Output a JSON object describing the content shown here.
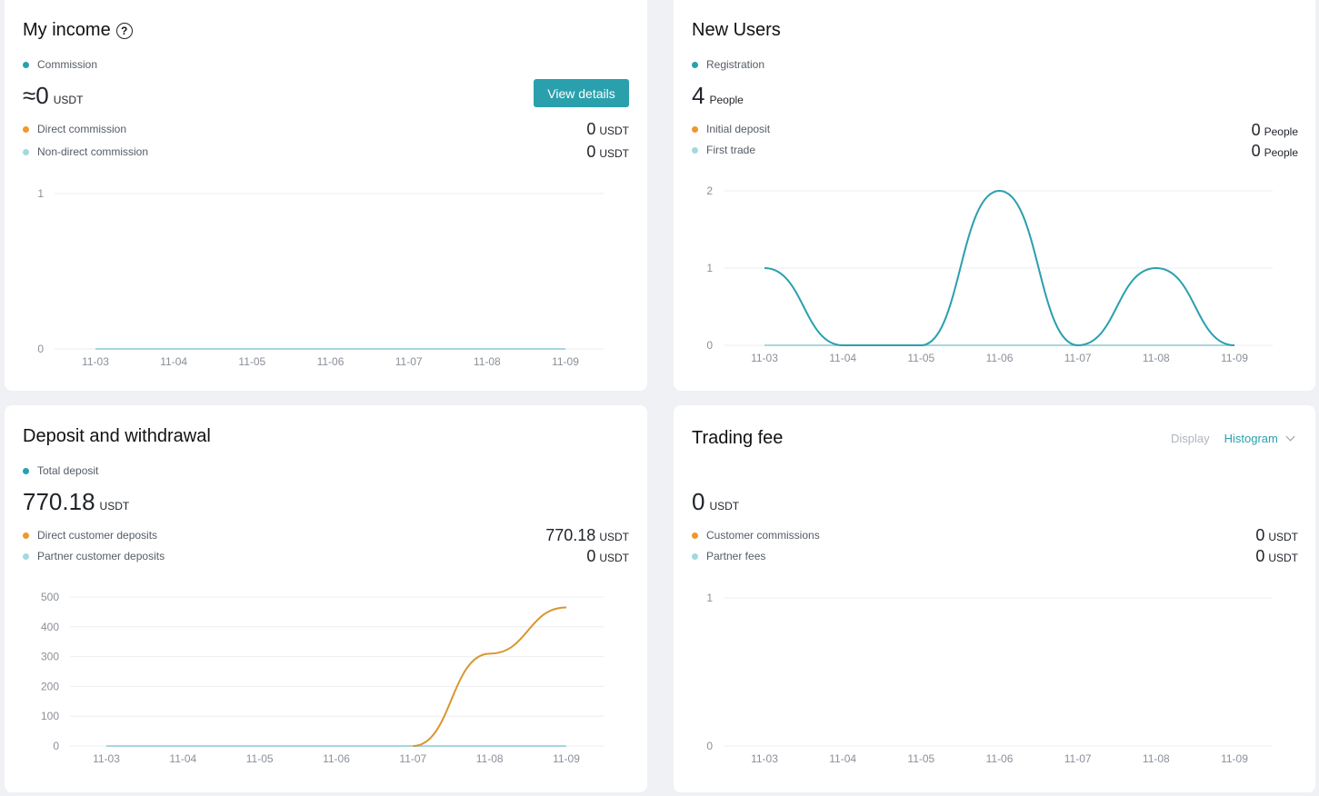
{
  "colors": {
    "teal": "#2aa0ad",
    "orange": "#f0982d",
    "light_blue": "#a6d7de",
    "deposit_line": "#d8962f"
  },
  "income": {
    "title": "My income",
    "help_icon": "question-circle-icon",
    "legend_main": "Commission",
    "approx": "≈",
    "total": "0",
    "unit": "USDT",
    "button": "View details",
    "legend_direct": "Direct commission",
    "legend_nondirect": "Non-direct commission",
    "direct_value": "0",
    "nondirect_value": "0"
  },
  "users": {
    "title": "New Users",
    "legend_main": "Registration",
    "total": "4",
    "unit": "People",
    "legend_initial": "Initial deposit",
    "legend_first_trade": "First trade",
    "initial_value": "0",
    "first_trade_value": "0"
  },
  "deposit": {
    "title": "Deposit and withdrawal",
    "legend_main": "Total deposit",
    "total": "770.18",
    "unit": "USDT",
    "legend_direct": "Direct customer deposits",
    "legend_partner": "Partner customer deposits",
    "direct_value": "770.18",
    "partner_value": "0"
  },
  "fee": {
    "title": "Trading fee",
    "display_label": "Display",
    "display_value": "Histogram",
    "total": "0",
    "unit": "USDT",
    "legend_customer": "Customer commissions",
    "legend_partner": "Partner fees",
    "customer_value": "0",
    "partner_value": "0"
  },
  "chart_data": [
    {
      "type": "line",
      "categories": [
        "11-03",
        "11-04",
        "11-05",
        "11-06",
        "11-07",
        "11-08",
        "11-09"
      ],
      "ylim": [
        0,
        1
      ],
      "yticks": [
        0,
        1
      ],
      "series": [
        {
          "name": "Direct commission",
          "values": [
            0,
            0,
            0,
            0,
            0,
            0,
            0
          ],
          "color": "#a6d7de"
        }
      ]
    },
    {
      "type": "line",
      "categories": [
        "11-03",
        "11-04",
        "11-05",
        "11-06",
        "11-07",
        "11-08",
        "11-09"
      ],
      "ylim": [
        0,
        2
      ],
      "yticks": [
        0,
        1,
        2
      ],
      "series": [
        {
          "name": "Registration",
          "values": [
            1,
            0,
            0,
            2,
            0,
            1,
            0
          ],
          "color": "#2aa0ad"
        },
        {
          "name": "First trade",
          "values": [
            0,
            0,
            0,
            0,
            0,
            0,
            0
          ],
          "color": "#a6d7de"
        }
      ]
    },
    {
      "type": "line",
      "categories": [
        "11-03",
        "11-04",
        "11-05",
        "11-06",
        "11-07",
        "11-08",
        "11-09"
      ],
      "ylim": [
        0,
        500
      ],
      "yticks": [
        0,
        100,
        200,
        300,
        400,
        500
      ],
      "series": [
        {
          "name": "Direct customer deposits",
          "values": [
            0,
            0,
            0,
            0,
            0,
            310,
            465
          ],
          "color": "#d8962f"
        },
        {
          "name": "Partner customer deposits",
          "values": [
            0,
            0,
            0,
            0,
            0,
            0,
            0
          ],
          "color": "#a6d7de"
        }
      ]
    },
    {
      "type": "bar",
      "categories": [
        "11-03",
        "11-04",
        "11-05",
        "11-06",
        "11-07",
        "11-08",
        "11-09"
      ],
      "ylim": [
        0,
        1
      ],
      "yticks": [
        0,
        1
      ],
      "series": [
        {
          "name": "Customer commissions",
          "values": [
            0,
            0,
            0,
            0,
            0,
            0,
            0
          ],
          "color": "#f0982d"
        },
        {
          "name": "Partner fees",
          "values": [
            0,
            0,
            0,
            0,
            0,
            0,
            0
          ],
          "color": "#a6d7de"
        }
      ]
    }
  ]
}
